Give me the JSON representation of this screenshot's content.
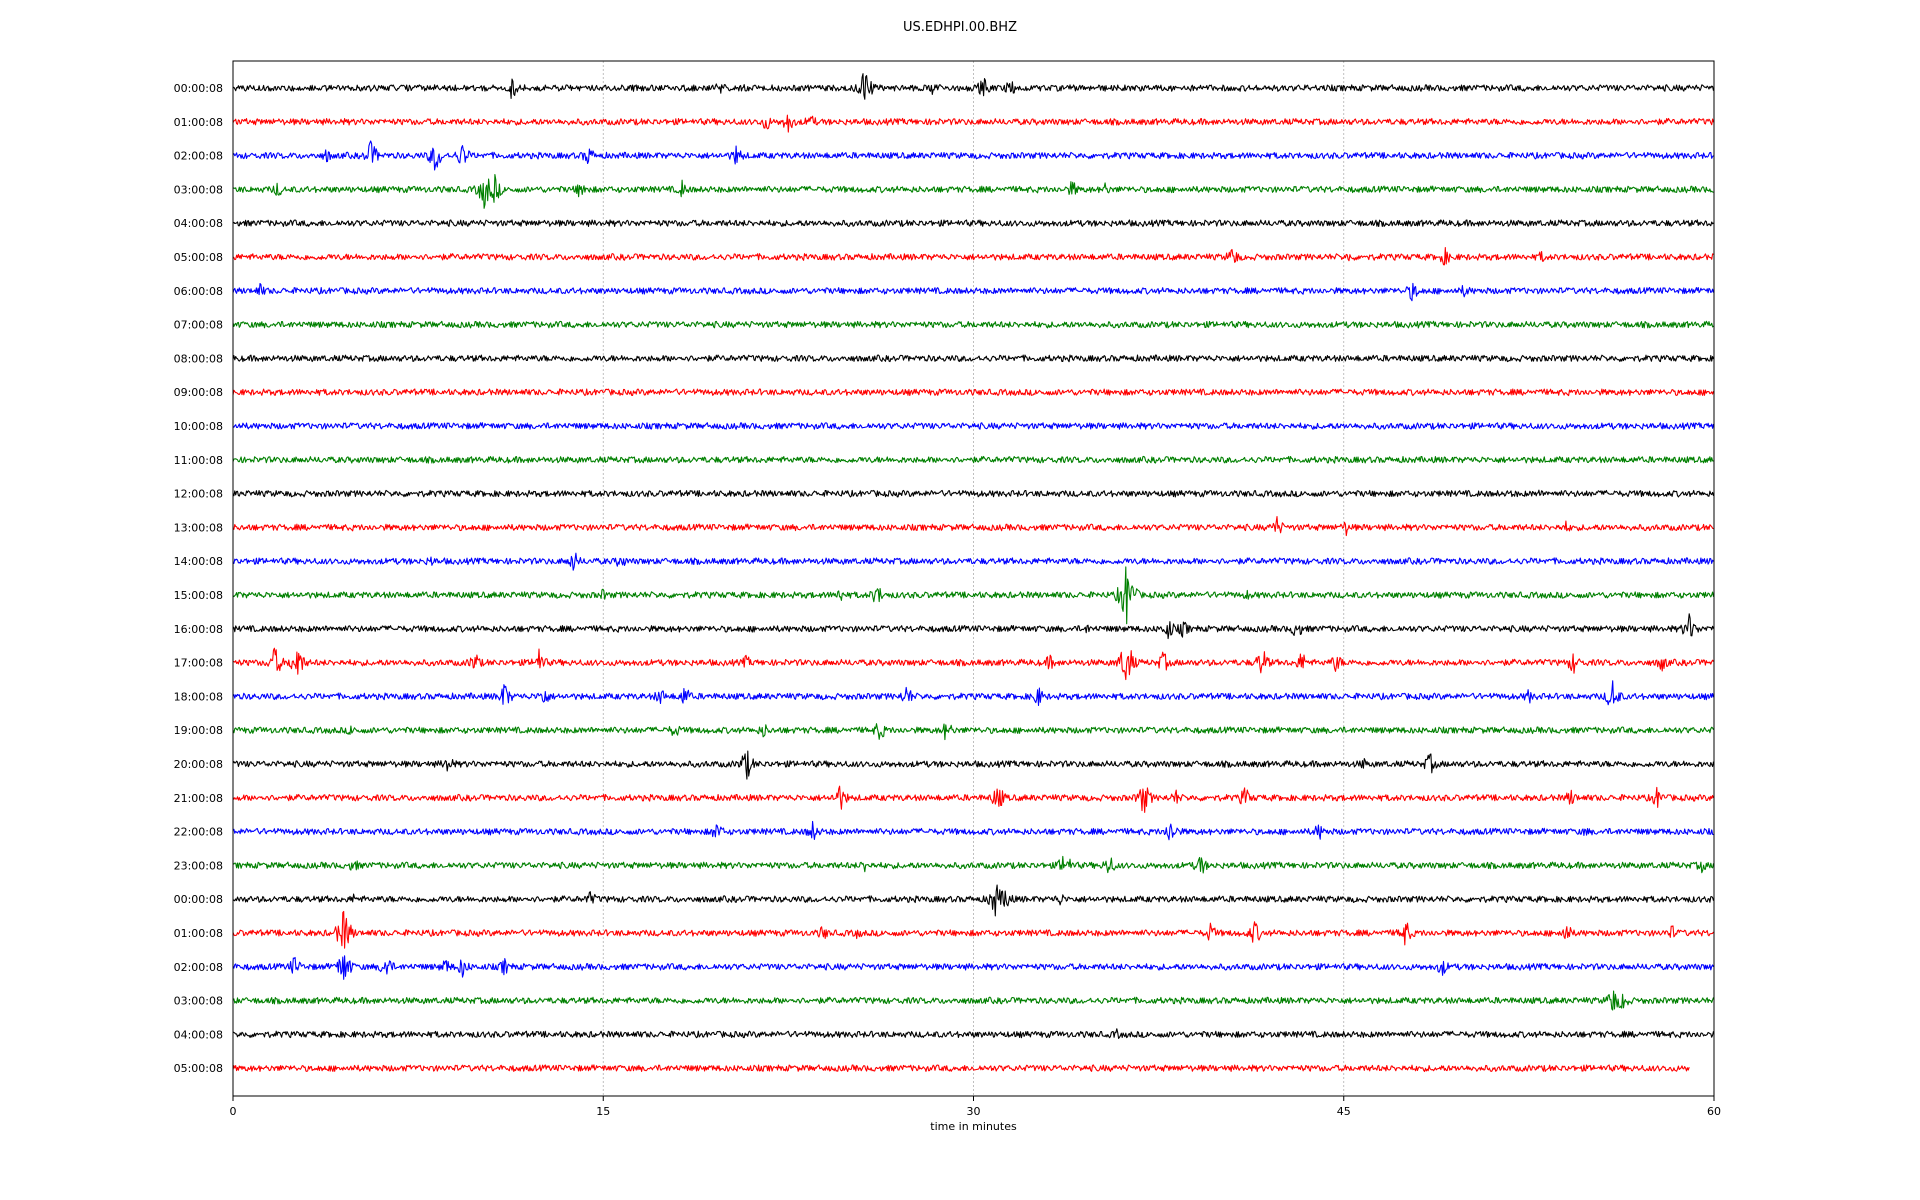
{
  "chart_data": {
    "type": "line",
    "title": "US.EDHPI.00.BHZ",
    "xlabel": "time in minutes",
    "ylabel": "",
    "xlim": [
      0,
      60
    ],
    "x_ticks": [
      "0",
      "15",
      "30",
      "45",
      "60"
    ],
    "grid": "vertical lines at 15, 30, 45 minutes",
    "row_labels": [
      "00:00:08",
      "01:00:08",
      "02:00:08",
      "03:00:08",
      "04:00:08",
      "05:00:08",
      "06:00:08",
      "07:00:08",
      "08:00:08",
      "09:00:08",
      "10:00:08",
      "11:00:08",
      "12:00:08",
      "13:00:08",
      "14:00:08",
      "15:00:08",
      "16:00:08",
      "17:00:08",
      "18:00:08",
      "19:00:08",
      "20:00:08",
      "21:00:08",
      "22:00:08",
      "23:00:08",
      "00:00:08",
      "01:00:08",
      "02:00:08",
      "03:00:08",
      "04:00:08",
      "05:00:08"
    ],
    "row_colors": [
      "#000000",
      "#ff0000",
      "#0000ff",
      "#008000"
    ],
    "last_row_end_minutes": 59,
    "events": [
      [
        [
          11.3,
          12
        ],
        [
          25.6,
          22
        ],
        [
          28.4,
          10
        ],
        [
          30.4,
          12
        ],
        [
          31.5,
          10
        ],
        [
          19.7,
          9
        ]
      ],
      [
        [
          21.6,
          10
        ],
        [
          22.5,
          12
        ],
        [
          23.4,
          9
        ],
        [
          28.4,
          6
        ]
      ],
      [
        [
          5.6,
          16
        ],
        [
          8.2,
          18
        ],
        [
          9.3,
          14
        ],
        [
          14.4,
          11
        ],
        [
          20.4,
          12
        ],
        [
          3.8,
          8
        ]
      ],
      [
        [
          10.2,
          22
        ],
        [
          10.6,
          16
        ],
        [
          14.1,
          11
        ],
        [
          18.2,
          10
        ],
        [
          34.0,
          10
        ],
        [
          35.3,
          8
        ],
        [
          1.8,
          9
        ]
      ],
      [],
      [
        [
          40.5,
          12
        ],
        [
          49.1,
          10
        ],
        [
          53.0,
          7
        ],
        [
          45.2,
          6
        ]
      ],
      [
        [
          1.1,
          8
        ],
        [
          47.8,
          12
        ],
        [
          49.9,
          8
        ]
      ],
      [],
      [],
      [],
      [],
      [],
      [
        [
          51.8,
          5
        ],
        [
          52.9,
          5
        ]
      ],
      [
        [
          42.3,
          12
        ],
        [
          45.1,
          9
        ],
        [
          54.0,
          7
        ]
      ],
      [
        [
          8.0,
          7
        ],
        [
          13.8,
          12
        ],
        [
          15.7,
          9
        ]
      ],
      [
        [
          15.0,
          7
        ],
        [
          24.6,
          9
        ],
        [
          26.1,
          12
        ],
        [
          36.2,
          34
        ],
        [
          41.1,
          6
        ]
      ],
      [
        [
          37.9,
          12
        ],
        [
          38.5,
          10
        ],
        [
          43.1,
          11
        ],
        [
          59.0,
          16
        ],
        [
          34.6,
          6
        ]
      ],
      [
        [
          1.7,
          18
        ],
        [
          2.6,
          20
        ],
        [
          9.8,
          12
        ],
        [
          12.4,
          14
        ],
        [
          20.8,
          8
        ],
        [
          33.1,
          9
        ],
        [
          36.2,
          26
        ],
        [
          37.7,
          12
        ],
        [
          41.7,
          16
        ],
        [
          43.3,
          12
        ],
        [
          44.7,
          11
        ],
        [
          54.3,
          12
        ],
        [
          57.9,
          10
        ]
      ],
      [
        [
          11.0,
          15
        ],
        [
          12.6,
          11
        ],
        [
          17.3,
          10
        ],
        [
          18.3,
          12
        ],
        [
          27.3,
          12
        ],
        [
          32.6,
          12
        ],
        [
          52.5,
          8
        ],
        [
          55.9,
          18
        ]
      ],
      [
        [
          4.8,
          7
        ],
        [
          17.9,
          9
        ],
        [
          21.5,
          9
        ],
        [
          26.2,
          12
        ],
        [
          28.9,
          12
        ]
      ],
      [
        [
          8.7,
          11
        ],
        [
          20.8,
          18
        ],
        [
          48.5,
          12
        ],
        [
          45.8,
          7
        ]
      ],
      [
        [
          24.6,
          15
        ],
        [
          31.0,
          15
        ],
        [
          36.9,
          18
        ],
        [
          41.0,
          12
        ],
        [
          54.2,
          10
        ],
        [
          57.7,
          12
        ],
        [
          38.2,
          9
        ]
      ],
      [
        [
          19.6,
          11
        ],
        [
          23.5,
          12
        ],
        [
          38.0,
          14
        ],
        [
          44.0,
          10
        ],
        [
          54.8,
          6
        ]
      ],
      [
        [
          4.9,
          8
        ],
        [
          25.6,
          8
        ],
        [
          33.7,
          15
        ],
        [
          35.5,
          12
        ],
        [
          39.2,
          12
        ],
        [
          59.5,
          8
        ]
      ],
      [
        [
          14.5,
          9
        ],
        [
          30.9,
          20
        ],
        [
          31.3,
          14
        ],
        [
          33.5,
          8
        ],
        [
          4.9,
          6
        ]
      ],
      [
        [
          4.5,
          26
        ],
        [
          23.9,
          9
        ],
        [
          25.3,
          7
        ],
        [
          39.6,
          11
        ],
        [
          41.4,
          14
        ],
        [
          47.5,
          15
        ],
        [
          54.0,
          12
        ],
        [
          58.3,
          9
        ]
      ],
      [
        [
          2.5,
          12
        ],
        [
          4.5,
          20
        ],
        [
          6.2,
          14
        ],
        [
          8.6,
          10
        ],
        [
          9.3,
          12
        ],
        [
          11.0,
          10
        ],
        [
          49.0,
          10
        ]
      ],
      [
        [
          55.9,
          16
        ],
        [
          56.3,
          12
        ]
      ],
      [
        [
          35.8,
          6
        ]
      ],
      []
    ]
  }
}
